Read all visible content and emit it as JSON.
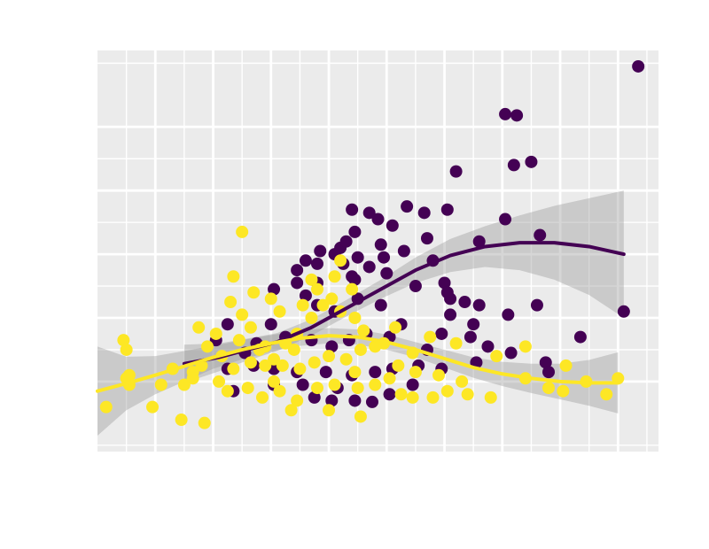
{
  "chart_data": {
    "type": "scatter",
    "title": "",
    "xlabel": "",
    "ylabel": "",
    "xlim": [
      -0.5,
      9.2
    ],
    "ylim": [
      -0.1,
      6.2
    ],
    "x_ticks": [
      0.5,
      1.5,
      2.5,
      3.5,
      4.5,
      5.5,
      6.5,
      7.5,
      8.5
    ],
    "x_minor_ticks": [
      0,
      1,
      2,
      3,
      4,
      5,
      6,
      7,
      8,
      9
    ],
    "y_ticks": [
      1,
      2,
      3,
      4,
      5
    ],
    "y_minor_ticks": [
      0,
      1.5,
      2.5,
      3.5,
      4.5,
      6
    ],
    "grid": true,
    "panel_color": "#EBEBEB",
    "series": [
      {
        "color": "#440154",
        "points": [
          [
            8.85,
            5.95
          ],
          [
            6.55,
            5.2
          ],
          [
            6.75,
            5.18
          ],
          [
            7.0,
            4.45
          ],
          [
            6.7,
            4.4
          ],
          [
            5.7,
            4.3
          ],
          [
            5.55,
            3.7
          ],
          [
            4.85,
            3.75
          ],
          [
            3.9,
            3.7
          ],
          [
            5.15,
            3.65
          ],
          [
            6.55,
            3.55
          ],
          [
            6.1,
            3.2
          ],
          [
            7.15,
            3.3
          ],
          [
            5.2,
            3.25
          ],
          [
            4.6,
            3.45
          ],
          [
            4.4,
            3.15
          ],
          [
            4.8,
            3.05
          ],
          [
            3.6,
            3.0
          ],
          [
            3.35,
            3.05
          ],
          [
            3.7,
            3.1
          ],
          [
            4.0,
            2.95
          ],
          [
            3.9,
            2.65
          ],
          [
            4.2,
            2.8
          ],
          [
            3.95,
            2.6
          ],
          [
            3.3,
            2.55
          ],
          [
            2.95,
            2.55
          ],
          [
            2.55,
            2.45
          ],
          [
            3.1,
            2.35
          ],
          [
            3.3,
            2.2
          ],
          [
            3.6,
            2.1
          ],
          [
            4.0,
            2.3
          ],
          [
            4.4,
            2.2
          ],
          [
            4.5,
            2.7
          ],
          [
            5.3,
            2.9
          ],
          [
            5.5,
            2.55
          ],
          [
            5.6,
            2.3
          ],
          [
            5.0,
            2.5
          ],
          [
            5.85,
            2.25
          ],
          [
            5.6,
            2.05
          ],
          [
            6.1,
            2.2
          ],
          [
            6.6,
            2.05
          ],
          [
            7.1,
            2.2
          ],
          [
            6.0,
            1.9
          ],
          [
            5.45,
            1.75
          ],
          [
            5.95,
            1.7
          ],
          [
            5.2,
            1.5
          ],
          [
            4.75,
            1.9
          ],
          [
            4.55,
            1.7
          ],
          [
            4.15,
            1.75
          ],
          [
            3.85,
            1.65
          ],
          [
            3.55,
            1.55
          ],
          [
            3.2,
            1.65
          ],
          [
            2.75,
            1.7
          ],
          [
            2.5,
            1.9
          ],
          [
            2.25,
            1.6
          ],
          [
            2.05,
            1.45
          ],
          [
            1.75,
            1.9
          ],
          [
            1.55,
            1.65
          ],
          [
            1.75,
            1.2
          ],
          [
            2.2,
            1.25
          ],
          [
            2.55,
            1.2
          ],
          [
            2.95,
            1.15
          ],
          [
            3.45,
            1.15
          ],
          [
            3.9,
            1.1
          ],
          [
            4.3,
            1.15
          ],
          [
            4.6,
            1.2
          ],
          [
            5.05,
            1.25
          ],
          [
            5.45,
            1.2
          ],
          [
            6.05,
            1.3
          ],
          [
            6.65,
            1.45
          ],
          [
            7.25,
            1.3
          ],
          [
            7.85,
            1.7
          ],
          [
            8.6,
            2.1
          ],
          [
            3.05,
            0.95
          ],
          [
            3.65,
            0.9
          ],
          [
            3.25,
            0.75
          ],
          [
            3.55,
            0.7
          ],
          [
            3.95,
            0.7
          ],
          [
            4.25,
            0.68
          ],
          [
            4.55,
            0.8
          ],
          [
            4.95,
            0.95
          ],
          [
            2.55,
            0.95
          ],
          [
            1.85,
            0.85
          ],
          [
            3.3,
            2.85
          ],
          [
            3.1,
            2.9
          ],
          [
            2.95,
            2.75
          ],
          [
            3.75,
            2.85
          ],
          [
            4.45,
            2.95
          ],
          [
            5.55,
            2.4
          ],
          [
            6.25,
            1.55
          ],
          [
            7.3,
            1.15
          ],
          [
            3.95,
            3.35
          ],
          [
            4.2,
            3.65
          ],
          [
            4.35,
            3.55
          ],
          [
            3.8,
            3.2
          ]
        ]
      },
      {
        "color": "#FDE725",
        "points": [
          [
            -0.35,
            0.6
          ],
          [
            0.05,
            0.95
          ],
          [
            0.05,
            1.1
          ],
          [
            0.0,
            1.5
          ],
          [
            0.0,
            1.05
          ],
          [
            0.45,
            0.6
          ],
          [
            0.8,
            1.2
          ],
          [
            1.0,
            0.95
          ],
          [
            0.95,
            0.4
          ],
          [
            1.35,
            0.35
          ],
          [
            1.15,
            1.15
          ],
          [
            1.3,
            1.25
          ],
          [
            1.4,
            1.55
          ],
          [
            1.65,
            1.4
          ],
          [
            1.55,
            1.75
          ],
          [
            1.8,
            2.25
          ],
          [
            2.0,
            2.05
          ],
          [
            2.15,
            1.85
          ],
          [
            1.95,
            1.65
          ],
          [
            2.3,
            1.5
          ],
          [
            2.55,
            1.35
          ],
          [
            2.75,
            1.6
          ],
          [
            2.95,
            1.75
          ],
          [
            3.2,
            2.0
          ],
          [
            3.4,
            2.2
          ],
          [
            3.55,
            2.3
          ],
          [
            3.2,
            2.6
          ],
          [
            2.0,
            3.35
          ],
          [
            2.5,
            2.3
          ],
          [
            2.65,
            2.1
          ],
          [
            3.05,
            2.2
          ],
          [
            3.6,
            2.65
          ],
          [
            3.3,
            2.45
          ],
          [
            3.9,
            2.45
          ],
          [
            3.7,
            2.1
          ],
          [
            3.95,
            2.0
          ],
          [
            4.1,
            1.8
          ],
          [
            4.45,
            1.6
          ],
          [
            4.65,
            1.85
          ],
          [
            4.3,
            1.55
          ],
          [
            4.05,
            1.5
          ],
          [
            3.8,
            1.35
          ],
          [
            3.5,
            1.4
          ],
          [
            3.25,
            1.3
          ],
          [
            3.0,
            1.2
          ],
          [
            2.7,
            1.25
          ],
          [
            2.4,
            1.25
          ],
          [
            2.15,
            1.3
          ],
          [
            1.85,
            1.2
          ],
          [
            1.6,
            1.0
          ],
          [
            1.75,
            0.85
          ],
          [
            2.1,
            0.9
          ],
          [
            2.35,
            0.75
          ],
          [
            2.65,
            0.85
          ],
          [
            2.95,
            0.7
          ],
          [
            3.3,
            0.9
          ],
          [
            3.6,
            0.95
          ],
          [
            4.0,
            0.9
          ],
          [
            4.3,
            0.95
          ],
          [
            4.55,
            1.05
          ],
          [
            4.75,
            0.8
          ],
          [
            4.95,
            0.75
          ],
          [
            5.3,
            0.75
          ],
          [
            5.55,
            0.85
          ],
          [
            5.8,
            1.0
          ],
          [
            5.4,
            1.1
          ],
          [
            5.0,
            1.15
          ],
          [
            4.7,
            1.25
          ],
          [
            5.9,
            0.8
          ],
          [
            6.3,
            0.75
          ],
          [
            6.9,
            1.05
          ],
          [
            7.3,
            0.9
          ],
          [
            7.55,
            0.85
          ],
          [
            7.6,
            1.25
          ],
          [
            7.95,
            1.0
          ],
          [
            8.3,
            0.8
          ],
          [
            8.5,
            1.05
          ],
          [
            6.9,
            1.55
          ],
          [
            6.4,
            1.4
          ],
          [
            5.7,
            1.6
          ],
          [
            5.25,
            1.7
          ],
          [
            4.95,
            1.45
          ],
          [
            2.85,
            0.55
          ],
          [
            3.5,
            0.55
          ],
          [
            4.05,
            0.45
          ],
          [
            2.4,
            1.55
          ],
          [
            2.55,
            1.0
          ],
          [
            2.2,
            2.4
          ],
          [
            1.85,
            2.65
          ],
          [
            3.7,
            2.9
          ],
          [
            3.95,
            1.15
          ],
          [
            2.9,
            1.5
          ],
          [
            1.15,
            1.05
          ],
          [
            0.6,
            0.95
          ],
          [
            -0.05,
            1.65
          ],
          [
            1.25,
            1.85
          ]
        ]
      }
    ],
    "trend_lines": [
      {
        "color": "#440154",
        "x": [
          1.0,
          1.6,
          2.0,
          2.6,
          3.2,
          3.8,
          4.4,
          5.0,
          5.6,
          6.2,
          6.8,
          7.4,
          8.0,
          8.6
        ],
        "y": [
          1.28,
          1.38,
          1.48,
          1.62,
          1.85,
          2.15,
          2.45,
          2.75,
          2.98,
          3.12,
          3.18,
          3.18,
          3.12,
          3.0
        ],
        "band": [
          [
            0.98,
            1.58
          ],
          [
            1.16,
            1.6
          ],
          [
            1.3,
            1.66
          ],
          [
            1.48,
            1.76
          ],
          [
            1.72,
            1.98
          ],
          [
            2.02,
            2.28
          ],
          [
            2.3,
            2.6
          ],
          [
            2.55,
            2.95
          ],
          [
            2.72,
            3.24
          ],
          [
            2.8,
            3.44
          ],
          [
            2.75,
            3.61
          ],
          [
            2.6,
            3.76
          ],
          [
            2.36,
            3.88
          ],
          [
            2.0,
            4.0
          ]
        ]
      },
      {
        "color": "#FDE725",
        "x": [
          -0.5,
          0.0,
          0.5,
          1.0,
          1.5,
          2.0,
          2.5,
          3.0,
          3.5,
          4.0,
          4.5,
          5.0,
          5.5,
          6.0,
          6.5,
          7.0,
          7.5,
          8.0,
          8.5
        ],
        "y": [
          0.85,
          0.97,
          1.1,
          1.24,
          1.38,
          1.5,
          1.6,
          1.68,
          1.72,
          1.7,
          1.62,
          1.5,
          1.36,
          1.22,
          1.12,
          1.05,
          1.0,
          0.98,
          0.98
        ],
        "band": [
          [
            0.15,
            1.55
          ],
          [
            0.55,
            1.39
          ],
          [
            0.8,
            1.4
          ],
          [
            1.0,
            1.48
          ],
          [
            1.2,
            1.56
          ],
          [
            1.35,
            1.65
          ],
          [
            1.47,
            1.73
          ],
          [
            1.56,
            1.8
          ],
          [
            1.6,
            1.84
          ],
          [
            1.58,
            1.82
          ],
          [
            1.5,
            1.74
          ],
          [
            1.38,
            1.62
          ],
          [
            1.22,
            1.5
          ],
          [
            1.06,
            1.38
          ],
          [
            0.93,
            1.31
          ],
          [
            0.82,
            1.28
          ],
          [
            0.72,
            1.28
          ],
          [
            0.62,
            1.34
          ],
          [
            0.5,
            1.46
          ]
        ]
      }
    ]
  }
}
